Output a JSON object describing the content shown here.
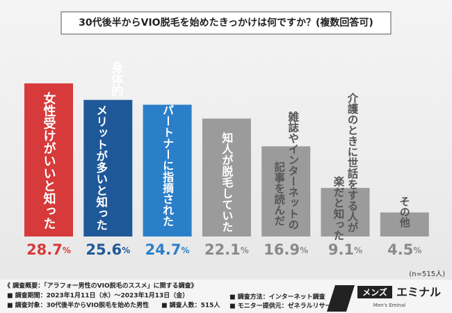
{
  "chart_data": {
    "type": "bar",
    "title": "30代後半からVIO脱毛を始めたきっかけは何ですか？(複数回答可)",
    "categories": [
      [
        "女性受けがいいと知った"
      ],
      [
        "身体的",
        "メリットが多いと知った"
      ],
      [
        "パートナーに指摘された"
      ],
      [
        "知人が脱毛していた"
      ],
      [
        "雑誌やインターネットの",
        "記事を読んだ"
      ],
      [
        "介護のときに世話をする人が",
        "楽だと知った"
      ],
      [
        "その他"
      ]
    ],
    "values": [
      28.7,
      25.6,
      24.7,
      22.1,
      16.9,
      9.1,
      4.5
    ],
    "value_labels": [
      "28.7%",
      "25.6%",
      "24.7%",
      "22.1%",
      "16.9%",
      "9.1%",
      "4.5%"
    ],
    "colors": [
      "#d63a3a",
      "#1f5898",
      "#2b7fc8",
      "#9b9b9b",
      "#9b9b9b",
      "#9b9b9b",
      "#9b9b9b"
    ],
    "sample_note": "(n=515人)"
  },
  "footer": {
    "survey_title": "《 調査概要：「アラフォー男性のVIO脱毛のススメ」に関する調査》",
    "items": [
      "■ 調査期間：2023年1月11日（水）〜2023年1月13日（金）",
      "■ 調査方法：インターネット調査",
      "■ 調査対象：30代後半からVIO脱毛を始めた男性",
      "■ 調査人数：515人",
      "■ モニター提供元：ゼネラルリサーチ"
    ],
    "logo": {
      "mark": "メンズ",
      "name": "エミナル",
      "sub": "Men's Eminal"
    }
  }
}
